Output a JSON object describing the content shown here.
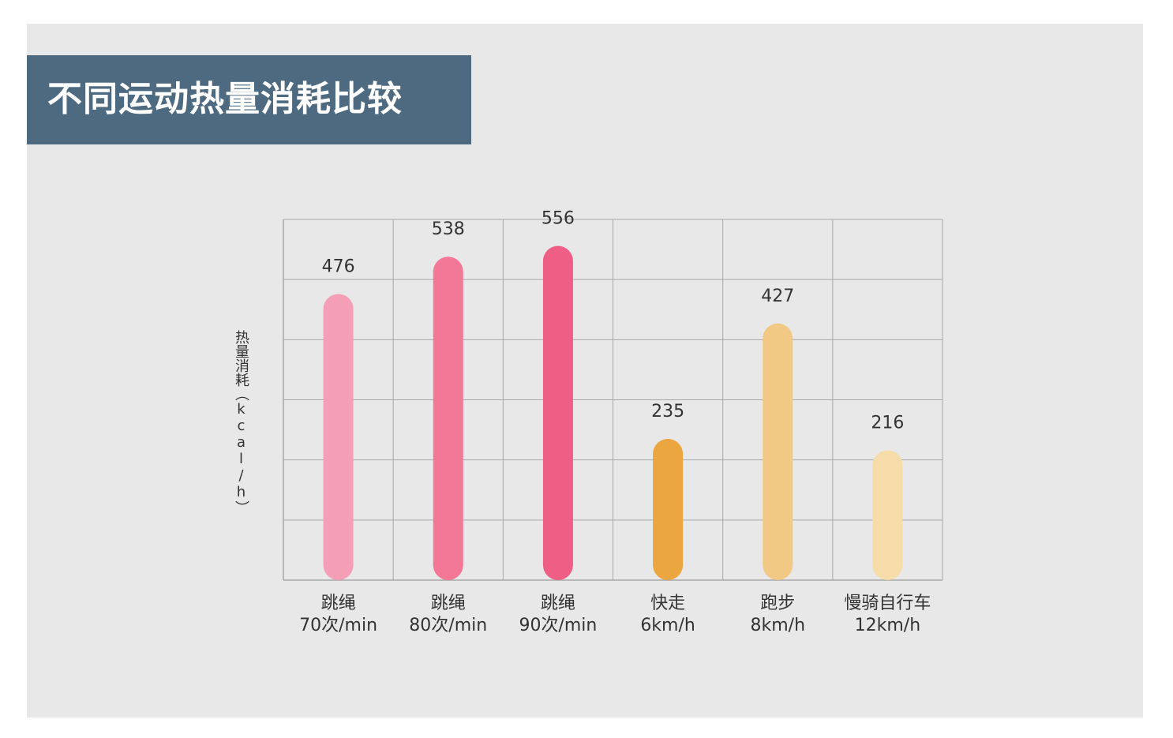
{
  "title": "不同运动热量消耗比较",
  "colors": {
    "panel_bg": "#e8e8e8",
    "title_bg": "#4e6a80",
    "grid": "#a8a8a8"
  },
  "chart_data": {
    "type": "bar",
    "title": "不同运动热量消耗比较",
    "ylabel": "热量消耗（kcal/h）",
    "xlabel": "",
    "categories": [
      {
        "line1": "跳绳",
        "line2": "70次/min"
      },
      {
        "line1": "跳绳",
        "line2": "80次/min"
      },
      {
        "line1": "跳绳",
        "line2": "90次/min"
      },
      {
        "line1": "快走",
        "line2": "6km/h"
      },
      {
        "line1": "跑步",
        "line2": "8km/h"
      },
      {
        "line1": "慢骑自行车",
        "line2": "12km/h"
      }
    ],
    "values": [
      476,
      538,
      556,
      235,
      427,
      216
    ],
    "data_labels": [
      "476",
      "538",
      "556",
      "235",
      "427",
      "216"
    ],
    "bar_colors": [
      "#f59fb6",
      "#f37898",
      "#ef5f85",
      "#eba63f",
      "#f1c985",
      "#f5dca9"
    ],
    "ylim": [
      0,
      600
    ],
    "y_gridlines": 6,
    "grid": true,
    "legend": "none"
  }
}
